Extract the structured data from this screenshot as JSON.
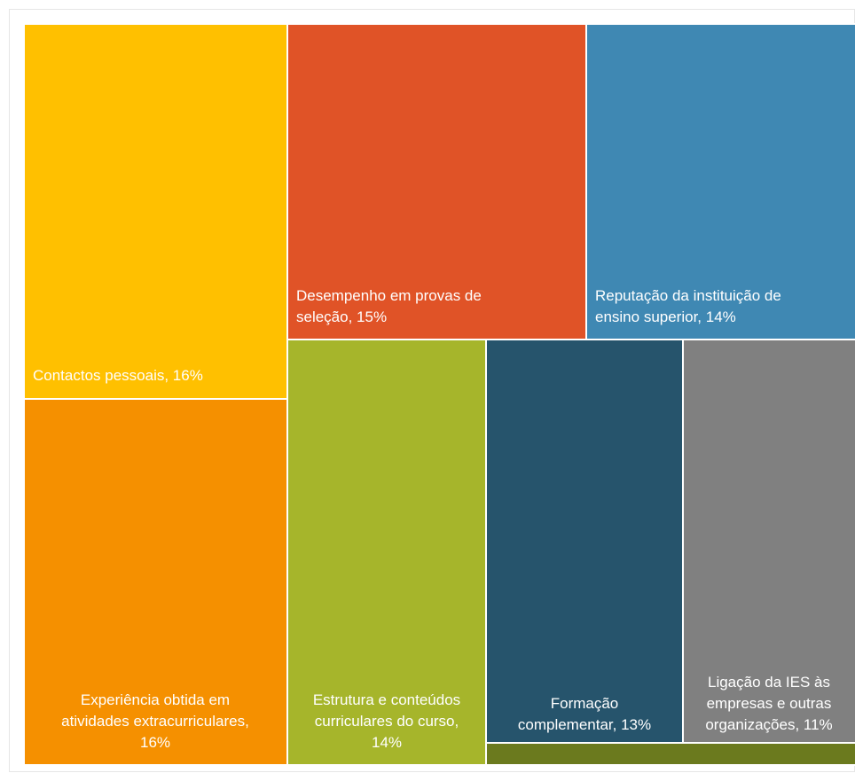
{
  "chart_data": {
    "type": "treemap",
    "items": [
      {
        "label": "Contactos pessoais, 16%",
        "lines": [
          "Contactos pessoais, 16%"
        ],
        "value": 16,
        "color": "#FFC000"
      },
      {
        "label": "Experiência obtida em atividades extracurriculares, 16%",
        "lines": [
          "Experiência obtida em",
          "atividades extracurriculares,",
          "16%"
        ],
        "value": 16,
        "color": "#F59000"
      },
      {
        "label": "Desempenho em provas de seleção, 15%",
        "lines": [
          "Desempenho em provas de",
          "seleção, 15%"
        ],
        "value": 15,
        "color": "#E05327"
      },
      {
        "label": "Reputação da instituição de ensino superior, 14%",
        "lines": [
          "Reputação da instituição de",
          "ensino superior, 14%"
        ],
        "value": 14,
        "color": "#3F88B3"
      },
      {
        "label": "Estrutura e conteúdos curriculares do curso, 14%",
        "lines": [
          "Estrutura e conteúdos",
          "curriculares do curso,",
          "14%"
        ],
        "value": 14,
        "color": "#A6B52B"
      },
      {
        "label": "Formação complementar, 13%",
        "lines": [
          "Formação",
          "complementar, 13%"
        ],
        "value": 13,
        "color": "#26546C"
      },
      {
        "label": "Ligação da IES às empresas e outras organizações, 11%",
        "lines": [
          "Ligação da IES às",
          "empresas e outras",
          "organizações, 11%"
        ],
        "value": 11,
        "color": "#808080"
      },
      {
        "label": "",
        "lines": [],
        "value": 1,
        "color": "#6B7A1E"
      }
    ]
  }
}
